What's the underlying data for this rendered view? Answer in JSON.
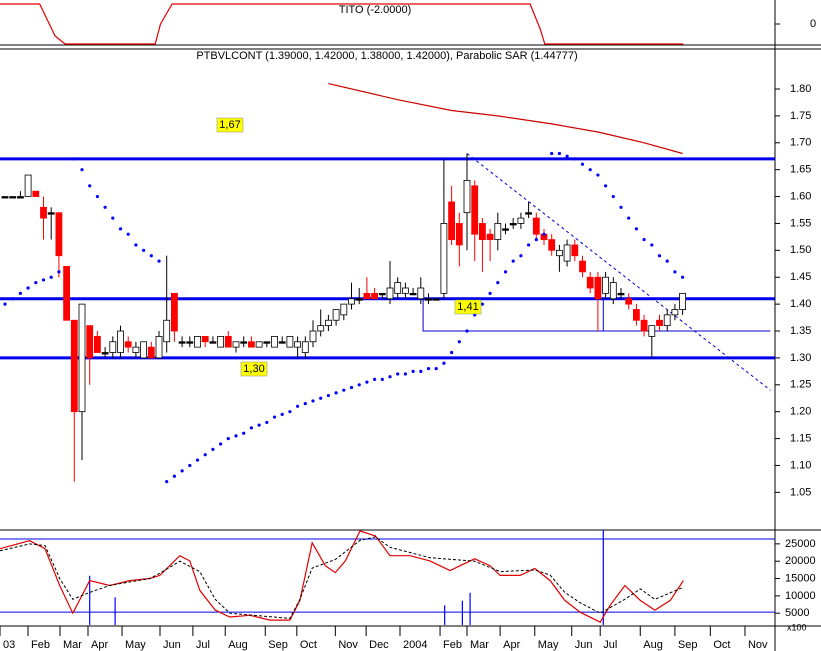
{
  "chart_data": [
    {
      "type": "line",
      "title": "TITO (-2.0000)",
      "color": "#e00000",
      "x": [
        -0.65,
        4.5,
        6.5,
        7.8,
        19.5,
        20.2,
        21.7,
        68.2,
        69.5,
        70.1,
        88.1
      ],
      "values": [
        2,
        2,
        -1.2,
        -2,
        -2,
        0,
        2,
        2,
        -0.5,
        -2,
        -2
      ],
      "xlim": [
        -0.65,
        100
      ],
      "ylim": [
        -2.3,
        2.3
      ],
      "yticks": [
        0
      ]
    },
    {
      "type": "candlestick",
      "title": "PTBVLCONT (1.39000, 1.42000, 1.38000, 1.42000), Parabolic SAR (1.44777)",
      "up_color": "#ffffff",
      "down_color": "#ff0000",
      "flat_color": "#000000",
      "candles": [
        [
          1.6,
          1.6,
          1.6,
          1.6
        ],
        [
          1.6,
          1.6,
          1.6,
          1.6
        ],
        [
          1.6,
          1.61,
          1.6,
          1.6
        ],
        [
          1.6,
          1.64,
          1.6,
          1.64
        ],
        [
          1.61,
          1.61,
          1.6,
          1.6
        ],
        [
          1.58,
          1.6,
          1.52,
          1.56
        ],
        [
          1.57,
          1.58,
          1.52,
          1.57
        ],
        [
          1.57,
          1.57,
          1.45,
          1.49
        ],
        [
          1.47,
          1.47,
          1.37,
          1.37
        ],
        [
          1.37,
          1.37,
          1.07,
          1.2
        ],
        [
          1.2,
          1.4,
          1.11,
          1.4
        ],
        [
          1.36,
          1.36,
          1.25,
          1.3
        ],
        [
          1.34,
          1.35,
          1.31,
          1.31
        ],
        [
          1.31,
          1.32,
          1.3,
          1.31
        ],
        [
          1.31,
          1.34,
          1.3,
          1.33
        ],
        [
          1.31,
          1.36,
          1.3,
          1.35
        ],
        [
          1.33,
          1.34,
          1.31,
          1.32
        ],
        [
          1.31,
          1.33,
          1.3,
          1.32
        ],
        [
          1.3,
          1.33,
          1.3,
          1.33
        ],
        [
          1.32,
          1.33,
          1.3,
          1.3
        ],
        [
          1.3,
          1.35,
          1.3,
          1.34
        ],
        [
          1.33,
          1.49,
          1.31,
          1.37
        ],
        [
          1.42,
          1.42,
          1.33,
          1.35
        ],
        [
          1.33,
          1.34,
          1.32,
          1.33
        ],
        [
          1.33,
          1.34,
          1.32,
          1.33
        ],
        [
          1.32,
          1.34,
          1.32,
          1.34
        ],
        [
          1.34,
          1.34,
          1.32,
          1.33
        ],
        [
          1.33,
          1.34,
          1.33,
          1.33
        ],
        [
          1.32,
          1.34,
          1.32,
          1.34
        ],
        [
          1.34,
          1.35,
          1.32,
          1.32
        ],
        [
          1.32,
          1.33,
          1.31,
          1.33
        ],
        [
          1.33,
          1.34,
          1.32,
          1.33
        ],
        [
          1.33,
          1.34,
          1.32,
          1.32
        ],
        [
          1.32,
          1.33,
          1.32,
          1.33
        ],
        [
          1.33,
          1.33,
          1.32,
          1.33
        ],
        [
          1.32,
          1.34,
          1.32,
          1.34
        ],
        [
          1.33,
          1.34,
          1.33,
          1.33
        ],
        [
          1.32,
          1.34,
          1.32,
          1.34
        ],
        [
          1.32,
          1.34,
          1.3,
          1.33
        ],
        [
          1.31,
          1.34,
          1.3,
          1.33
        ],
        [
          1.33,
          1.37,
          1.32,
          1.35
        ],
        [
          1.35,
          1.39,
          1.34,
          1.36
        ],
        [
          1.36,
          1.38,
          1.35,
          1.37
        ],
        [
          1.37,
          1.39,
          1.36,
          1.39
        ],
        [
          1.38,
          1.4,
          1.37,
          1.4
        ],
        [
          1.4,
          1.44,
          1.39,
          1.41
        ],
        [
          1.41,
          1.43,
          1.4,
          1.41
        ],
        [
          1.42,
          1.45,
          1.41,
          1.41
        ],
        [
          1.42,
          1.43,
          1.41,
          1.41
        ],
        [
          1.42,
          1.42,
          1.41,
          1.42
        ],
        [
          1.41,
          1.48,
          1.4,
          1.43
        ],
        [
          1.42,
          1.45,
          1.41,
          1.44
        ],
        [
          1.42,
          1.44,
          1.41,
          1.43
        ],
        [
          1.42,
          1.43,
          1.42,
          1.42
        ],
        [
          1.41,
          1.45,
          1.4,
          1.43
        ],
        [
          1.41,
          1.42,
          1.4,
          1.41
        ],
        [
          1.41,
          1.41,
          1.41,
          1.41
        ],
        [
          1.42,
          1.67,
          1.41,
          1.55
        ],
        [
          1.59,
          1.62,
          1.51,
          1.52
        ],
        [
          1.55,
          1.57,
          1.47,
          1.51
        ],
        [
          1.57,
          1.68,
          1.5,
          1.63
        ],
        [
          1.62,
          1.63,
          1.48,
          1.53
        ],
        [
          1.55,
          1.56,
          1.46,
          1.52
        ],
        [
          1.53,
          1.54,
          1.48,
          1.52
        ],
        [
          1.52,
          1.57,
          1.5,
          1.55
        ],
        [
          1.54,
          1.55,
          1.53,
          1.54
        ],
        [
          1.55,
          1.56,
          1.54,
          1.55
        ],
        [
          1.55,
          1.57,
          1.54,
          1.56
        ],
        [
          1.57,
          1.59,
          1.56,
          1.57
        ],
        [
          1.56,
          1.57,
          1.52,
          1.53
        ],
        [
          1.53,
          1.54,
          1.51,
          1.52
        ],
        [
          1.52,
          1.53,
          1.49,
          1.5
        ],
        [
          1.49,
          1.51,
          1.46,
          1.5
        ],
        [
          1.48,
          1.52,
          1.47,
          1.51
        ],
        [
          1.51,
          1.52,
          1.48,
          1.49
        ],
        [
          1.48,
          1.49,
          1.45,
          1.46
        ],
        [
          1.45,
          1.46,
          1.42,
          1.43
        ],
        [
          1.45,
          1.46,
          1.35,
          1.41
        ],
        [
          1.42,
          1.46,
          1.41,
          1.45
        ],
        [
          1.41,
          1.45,
          1.4,
          1.44
        ],
        [
          1.42,
          1.43,
          1.41,
          1.42
        ],
        [
          1.41,
          1.42,
          1.39,
          1.4
        ],
        [
          1.39,
          1.4,
          1.36,
          1.37
        ],
        [
          1.37,
          1.38,
          1.34,
          1.35
        ],
        [
          1.34,
          1.36,
          1.3,
          1.36
        ],
        [
          1.37,
          1.38,
          1.35,
          1.36
        ],
        [
          1.36,
          1.39,
          1.35,
          1.38
        ],
        [
          1.38,
          1.4,
          1.37,
          1.39
        ],
        [
          1.39,
          1.42,
          1.38,
          1.42
        ]
      ],
      "sar": {
        "color": "#0000ff",
        "values": [
          1.4,
          1.41,
          1.42,
          1.43,
          1.44,
          1.445,
          1.45,
          1.46,
          null,
          1.67,
          1.65,
          1.62,
          1.6,
          1.58,
          1.56,
          1.54,
          1.53,
          1.51,
          1.5,
          1.49,
          1.48,
          1.07,
          1.08,
          1.09,
          1.1,
          1.11,
          1.12,
          1.13,
          1.14,
          1.15,
          1.155,
          1.16,
          1.17,
          1.175,
          1.18,
          1.19,
          1.195,
          1.2,
          1.21,
          1.215,
          1.22,
          1.225,
          1.23,
          1.235,
          1.24,
          1.245,
          1.25,
          1.255,
          1.26,
          1.26,
          1.265,
          1.27,
          1.27,
          1.275,
          1.275,
          1.28,
          1.28,
          1.29,
          1.31,
          1.33,
          1.35,
          1.38,
          1.4,
          1.42,
          1.44,
          1.46,
          1.48,
          1.49,
          1.51,
          1.52,
          1.53,
          1.68,
          1.68,
          1.675,
          1.67,
          1.66,
          1.65,
          1.64,
          1.62,
          1.6,
          1.58,
          1.56,
          1.54,
          1.52,
          1.51,
          1.49,
          1.48,
          1.46,
          1.45
        ]
      },
      "moving_average": {
        "color": "#cc0000",
        "x": [
          42,
          51,
          58,
          64,
          71,
          77,
          83,
          88
        ],
        "values": [
          1.81,
          1.78,
          1.76,
          1.75,
          1.735,
          1.72,
          1.7,
          1.68
        ]
      },
      "levels": [
        {
          "value": 1.67,
          "label": "1,67"
        },
        {
          "value": 1.41,
          "label": "1,41"
        },
        {
          "value": 1.3,
          "label": "1,30"
        }
      ],
      "level_color": "#0000ee",
      "drawings": [
        {
          "x": [
            60,
            99.4
          ],
          "values": [
            1.68,
            1.24
          ],
          "dashed": true,
          "color": "#0000cc"
        },
        {
          "x": [
            54.3,
            54.3,
            99.4
          ],
          "values": [
            1.41,
            1.35,
            1.35
          ],
          "dashed": false,
          "color": "#0000cc"
        },
        {
          "x": [
            77.7,
            77.7
          ],
          "values": [
            1.41,
            1.35
          ],
          "dashed": false,
          "color": "#0000cc"
        }
      ],
      "xlim": [
        -0.65,
        100
      ],
      "ylim": [
        0.98,
        1.8725
      ],
      "yticks": [
        1.05,
        {
          "value": 1.1,
          "label": "1.10"
        },
        1.15,
        {
          "value": 1.2,
          "label": "1.20"
        },
        1.25,
        {
          "value": 1.3,
          "label": "1.30"
        },
        1.35,
        {
          "value": 1.4,
          "label": "1.40"
        },
        1.45,
        {
          "value": 1.5,
          "label": "1.50"
        },
        1.55,
        {
          "value": 1.6,
          "label": "1.60"
        },
        1.65,
        {
          "value": 1.7,
          "label": "1.70"
        },
        1.75,
        {
          "value": 1.8,
          "label": "1.80"
        }
      ]
    },
    {
      "type": "line",
      "unit_label": "x100",
      "series": [
        {
          "color": "#e00000",
          "dashed": false,
          "x": [
            -0.65,
            3.2,
            5.2,
            7.1,
            8.8,
            11,
            13.6,
            16.2,
            18.8,
            20.1,
            22.7,
            24,
            25.3,
            27.3,
            29.2,
            31.8,
            34.4,
            37,
            38.3,
            39.9,
            41.6,
            42.9,
            44.2,
            46.1,
            48.1,
            50,
            52.6,
            55.2,
            57.8,
            59.1,
            61,
            63,
            64.3,
            66.9,
            68.8,
            70.8,
            72.7,
            74.7,
            77.3,
            78.6,
            80.5,
            82.5,
            84.4,
            86.4,
            88.1
          ],
          "values": [
            23600,
            25900,
            23600,
            13000,
            5000,
            14400,
            13000,
            14400,
            15000,
            15900,
            21600,
            20100,
            11600,
            5900,
            3900,
            4400,
            3000,
            3000,
            8700,
            25300,
            18700,
            16700,
            20100,
            28700,
            27300,
            21600,
            21600,
            20100,
            17300,
            18700,
            20700,
            18700,
            15900,
            15900,
            17900,
            14400,
            8700,
            5300,
            2400,
            7300,
            13000,
            8700,
            5900,
            8700,
            14400
          ]
        },
        {
          "color": "#000000",
          "dashed": true,
          "x": [
            -0.65,
            3.2,
            5.2,
            7.1,
            8.8,
            11,
            13.6,
            16.2,
            18.8,
            20.1,
            22.7,
            25.3,
            27.3,
            29.2,
            34.4,
            37,
            38.3,
            39.9,
            42.9,
            46.1,
            48.1,
            50,
            55.2,
            61,
            64.3,
            68.8,
            70.8,
            72.7,
            74.7,
            77.3,
            80.5,
            82.5,
            84.4,
            88.1
          ],
          "values": [
            23000,
            25000,
            24500,
            15000,
            9000,
            11000,
            13000,
            14000,
            15000,
            16500,
            20000,
            17000,
            9000,
            5000,
            4000,
            3500,
            9000,
            18000,
            20500,
            26000,
            27000,
            24000,
            21000,
            20000,
            17000,
            17500,
            16000,
            11000,
            8000,
            5000,
            9000,
            12000,
            9000,
            12500
          ]
        }
      ],
      "bars": {
        "color": "#0000ff",
        "x": [
          11,
          14.3,
          57.1,
          59.4,
          60.4,
          77.7
        ],
        "values": [
          15800,
          9600,
          7300,
          8600,
          10900,
          29000
        ]
      },
      "levels": [
        26400,
        5300
      ],
      "level_color": "#0000ee",
      "xlim": [
        -0.65,
        100
      ],
      "ylim": [
        1600,
        29000
      ],
      "yticks": [
        5000,
        10000,
        15000,
        20000,
        25000
      ],
      "xticks": [
        {
          "value": -0.65,
          "label": "03"
        },
        {
          "value": 2.99,
          "label": "Feb"
        },
        {
          "value": 7.14,
          "label": "Mar"
        },
        {
          "value": 10.78,
          "label": "Apr"
        },
        {
          "value": 15.2,
          "label": "May"
        },
        {
          "value": 20.13,
          "label": "Jun"
        },
        {
          "value": 24.4,
          "label": "Jul"
        },
        {
          "value": 28.6,
          "label": "Aug"
        },
        {
          "value": 33.8,
          "label": "Sep"
        },
        {
          "value": 37.9,
          "label": "Oct"
        },
        {
          "value": 42.9,
          "label": "Nov"
        },
        {
          "value": 46.9,
          "label": "Dec"
        },
        {
          "value": 51.3,
          "label": "2004"
        },
        {
          "value": 56.5,
          "label": "Feb"
        },
        {
          "value": 60,
          "label": "Mar"
        },
        {
          "value": 64.3,
          "label": "Apr"
        },
        {
          "value": 68.8,
          "label": "May"
        },
        {
          "value": 73.6,
          "label": "Jun"
        },
        {
          "value": 77.3,
          "label": "Jul"
        },
        {
          "value": 82.5,
          "label": "Aug"
        },
        {
          "value": 87,
          "label": "Sep"
        },
        {
          "value": 91.6,
          "label": "Oct"
        },
        {
          "value": 96.1,
          "label": "Nov"
        }
      ]
    }
  ]
}
